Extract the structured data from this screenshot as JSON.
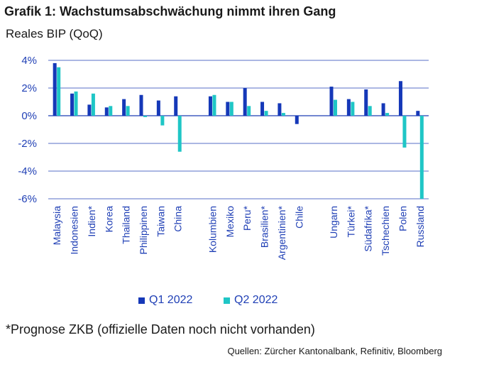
{
  "title": "Grafik 1: Wachstumsabschwächung nimmt ihren Gang",
  "subtitle": "Reales BIP (QoQ)",
  "footnote": "*Prognose ZKB (offizielle Daten noch nicht vorhanden)",
  "source": "Quellen: Zürcher Kantonalbank, Refinitiv, Bloomberg",
  "colors": {
    "q1": "#1538b8",
    "q2": "#1fc6c6",
    "axis": "#1f3fb5",
    "grid": "#1f3fb5"
  },
  "chart_data": {
    "type": "bar",
    "title": "Grafik 1: Wachstumsabschwächung nimmt ihren Gang",
    "ylabel": "Reales BIP (QoQ)",
    "ylim": [
      -6,
      4
    ],
    "yticks": [
      4,
      2,
      0,
      -2,
      -4,
      -6
    ],
    "ytick_labels": [
      "4%",
      "2%",
      "0%",
      "-2%",
      "-4%",
      "-6%"
    ],
    "grid": true,
    "legend": "bottom",
    "groups": [
      {
        "categories": [
          "Malaysia",
          "Indonesien",
          "Indien*",
          "Korea",
          "Thailand",
          "Philippinen",
          "Taiwan",
          "China"
        ]
      },
      {
        "categories": [
          "Kolumbien",
          "Mexiko",
          "Peru*",
          "Brasilien*",
          "Argentinien*",
          "Chile"
        ]
      },
      {
        "categories": [
          "Ungarn",
          "Türkei*",
          "Südafrika*",
          "Tschechien",
          "Polen",
          "Russland"
        ]
      }
    ],
    "categories": [
      "Malaysia",
      "Indonesien",
      "Indien*",
      "Korea",
      "Thailand",
      "Philippinen",
      "Taiwan",
      "China",
      "Kolumbien",
      "Mexiko",
      "Peru*",
      "Brasilien*",
      "Argentinien*",
      "Chile",
      "Ungarn",
      "Türkei*",
      "Südafrika*",
      "Tschechien",
      "Polen",
      "Russland"
    ],
    "series": [
      {
        "name": "Q1 2022",
        "values": [
          3.8,
          1.6,
          0.8,
          0.6,
          1.2,
          1.5,
          1.1,
          1.4,
          1.4,
          1.0,
          2.0,
          1.0,
          0.9,
          -0.6,
          2.1,
          1.2,
          1.9,
          0.9,
          2.5,
          0.35
        ]
      },
      {
        "name": "Q2 2022",
        "values": [
          3.5,
          1.75,
          1.6,
          0.7,
          0.7,
          -0.1,
          -0.7,
          -2.6,
          1.5,
          1.0,
          0.7,
          0.35,
          0.2,
          null,
          1.15,
          1.0,
          0.7,
          0.2,
          -2.3,
          -6.0
        ]
      }
    ]
  }
}
